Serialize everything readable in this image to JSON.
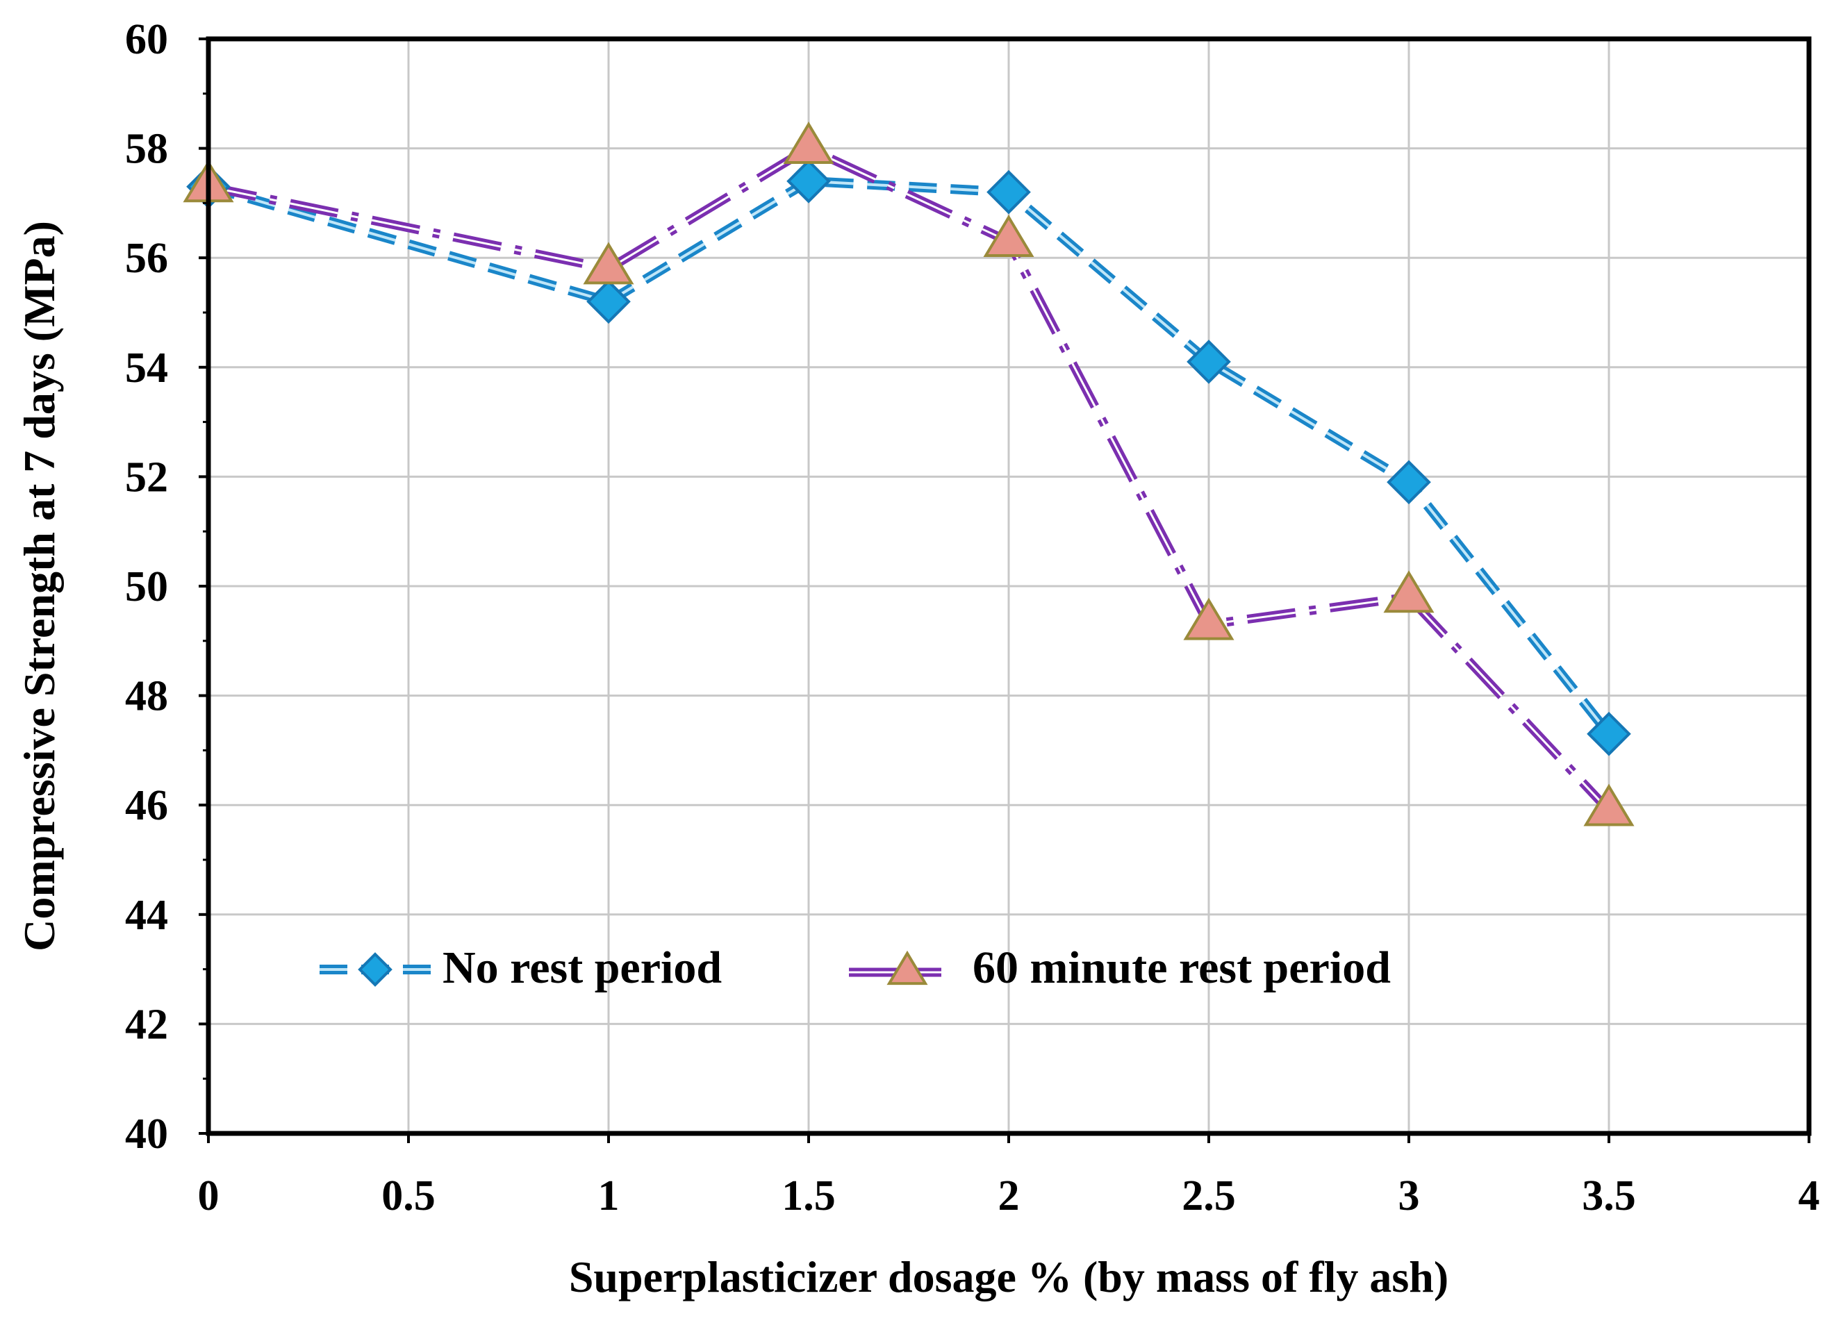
{
  "chart_data": {
    "type": "line",
    "title": "",
    "xlabel": "Superplasticizer dosage % (by mass of fly ash)",
    "ylabel": "Compressive Strength at 7 days (MPa)",
    "xlim": [
      0,
      4
    ],
    "ylim": [
      40,
      60
    ],
    "x_ticks": [
      0,
      0.5,
      1,
      1.5,
      2,
      2.5,
      3,
      3.5,
      4
    ],
    "x_tick_labels": [
      "0",
      "0.5",
      "1",
      "1.5",
      "2",
      "2.5",
      "3",
      "3.5",
      "4"
    ],
    "y_ticks": [
      40,
      42,
      44,
      46,
      48,
      50,
      52,
      54,
      56,
      58,
      60
    ],
    "y_tick_labels": [
      "40",
      "42",
      "44",
      "46",
      "48",
      "50",
      "52",
      "54",
      "56",
      "58",
      "60"
    ],
    "grid": true,
    "legend_position": "lower-center",
    "series": [
      {
        "name": "No rest period",
        "marker": "diamond",
        "color": "#1aa3e0",
        "x": [
          0,
          1,
          1.5,
          2,
          2.5,
          3,
          3.5
        ],
        "y": [
          57.3,
          55.2,
          57.4,
          57.2,
          54.1,
          51.9,
          47.3
        ]
      },
      {
        "name": "60 minute rest period",
        "marker": "triangle",
        "color": "#7b2fb0",
        "marker_fill": "#e8958a",
        "x": [
          0,
          1,
          1.5,
          2,
          2.5,
          3,
          3.5
        ],
        "y": [
          57.3,
          55.8,
          58.0,
          56.3,
          49.3,
          49.8,
          45.9
        ]
      }
    ]
  }
}
